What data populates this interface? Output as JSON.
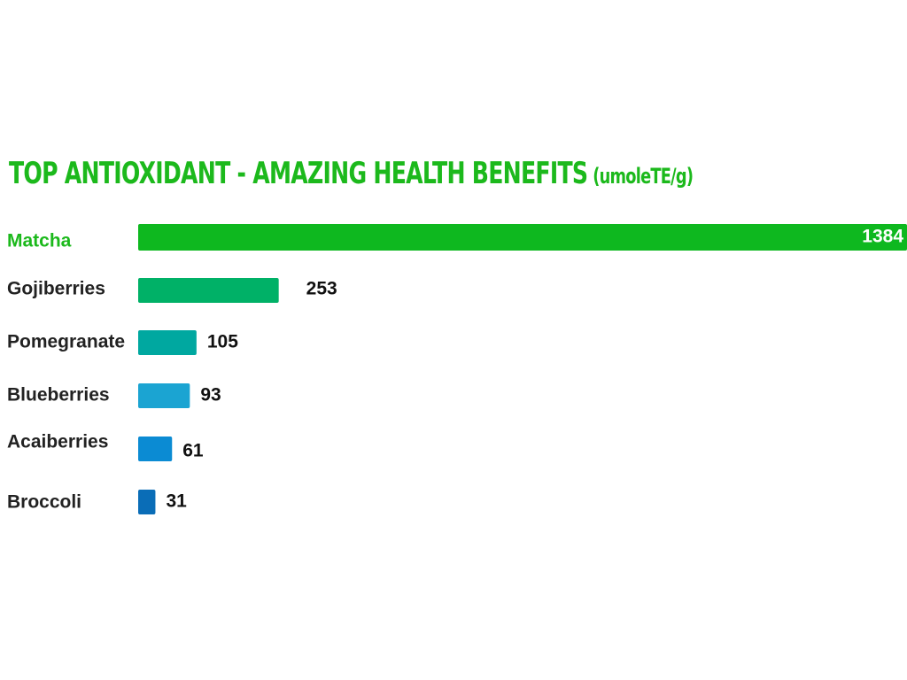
{
  "title": "TOP ANTIOXIDANT - AMAZING HEALTH BENEFITS",
  "unit": "(umoleTE/g)",
  "chart_data": {
    "type": "bar",
    "orientation": "horizontal",
    "title": "TOP ANTIOXIDANT - AMAZING HEALTH BENEFITS",
    "subtitle": "(umoleTE/g)",
    "categories": [
      "Matcha",
      "Gojiberries",
      "Pomegranate",
      "Blueberries",
      "Acaiberries",
      "Broccoli"
    ],
    "values": [
      1384,
      253,
      105,
      93,
      61,
      31
    ],
    "xlim": [
      0,
      1384
    ],
    "grid": false,
    "legend": "none",
    "highlight_category": "Matcha",
    "colors": [
      "#0eb81f",
      "#00b167",
      "#00a8a0",
      "#1ba4d2",
      "#0b8bd3",
      "#0a6db7"
    ],
    "label_colors": [
      "#1cb91c",
      "#222222",
      "#222222",
      "#222222",
      "#222222",
      "#222222"
    ]
  }
}
